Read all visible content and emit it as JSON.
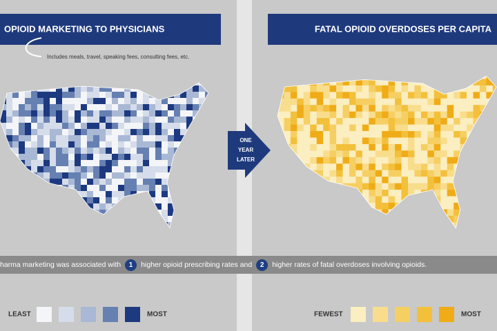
{
  "left_panel": {
    "title": "OPIOID MARKETING TO PHYSICIANS",
    "note": "Includes meals, travel, speaking fees, consulting fees, etc.",
    "legend": {
      "low_label": "LEAST",
      "high_label": "MOST",
      "colors": [
        "#f4f5f8",
        "#d5dcea",
        "#a9b8d4",
        "#6680b2",
        "#1d3a80"
      ]
    }
  },
  "arrow": {
    "lines": [
      "ONE",
      "YEAR",
      "LATER"
    ]
  },
  "right_panel": {
    "title": "FATAL OPIOID OVERDOSES PER CAPITA",
    "legend": {
      "low_label": "FEWEST",
      "high_label": "MOST",
      "colors": [
        "#fbeec0",
        "#f8dd8c",
        "#f6cf63",
        "#f3c03c",
        "#efac17"
      ]
    }
  },
  "banner": {
    "parts": [
      "harma marketing was associated with",
      "1",
      "higher opioid prescribing rates and",
      "2",
      "higher rates of fatal overdoses involving opioids."
    ]
  }
}
